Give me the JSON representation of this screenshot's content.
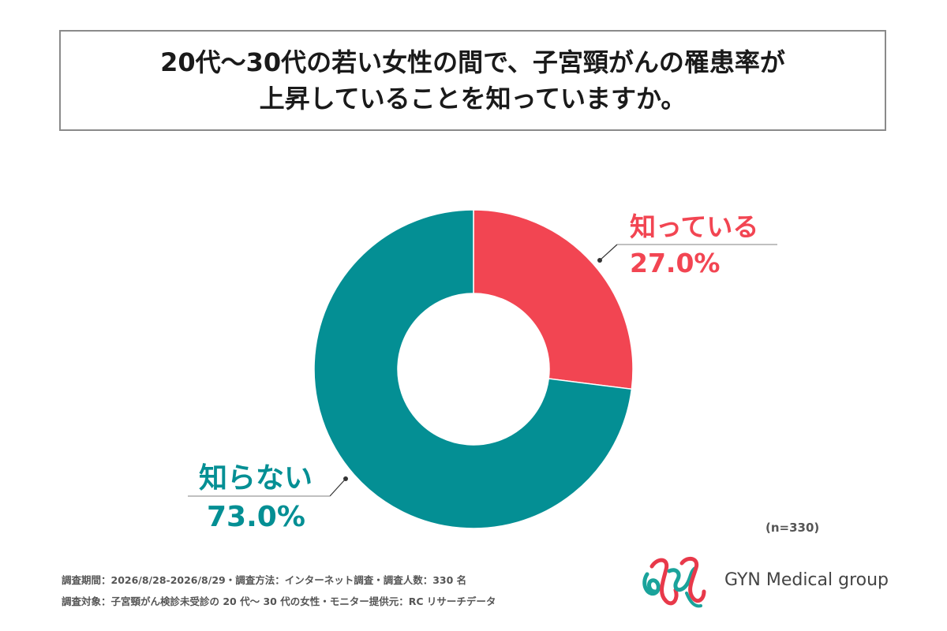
{
  "title": {
    "line1": "20代～30代の若い女性の間で、子宮頸がんの罹患率が",
    "line2": "上昇していることを知っていますか。"
  },
  "chart_data": {
    "type": "pie",
    "donut": true,
    "title": "20代～30代の若い女性の間で、子宮頸がんの罹患率が上昇していることを知っていますか。",
    "categories": [
      "知っている",
      "知らない"
    ],
    "values": [
      27.0,
      73.0
    ],
    "value_labels": [
      "27.0%",
      "73.0%"
    ],
    "colors": [
      "#f24552",
      "#048f94"
    ],
    "start_angle_deg": 0,
    "direction": "clockwise"
  },
  "labels": {
    "knows_name": "知っている",
    "knows_pct": "27.0%",
    "not_know_name": "知らない",
    "not_know_pct": "73.0%"
  },
  "note": {
    "n": "(n=330)"
  },
  "footer": {
    "line1": "調査期間：2026/8/28-2026/8/29・調査方法：インターネット調査・調査人数：330 名",
    "line2": "調査対象：子宮頸がん検診未受診の 20 代～ 30 代の女性・モニター提供元：RC リサーチデータ"
  },
  "brand": {
    "name": "GYN Medical group",
    "colors": {
      "red": "#e8394a",
      "teal": "#1aa39b"
    }
  }
}
